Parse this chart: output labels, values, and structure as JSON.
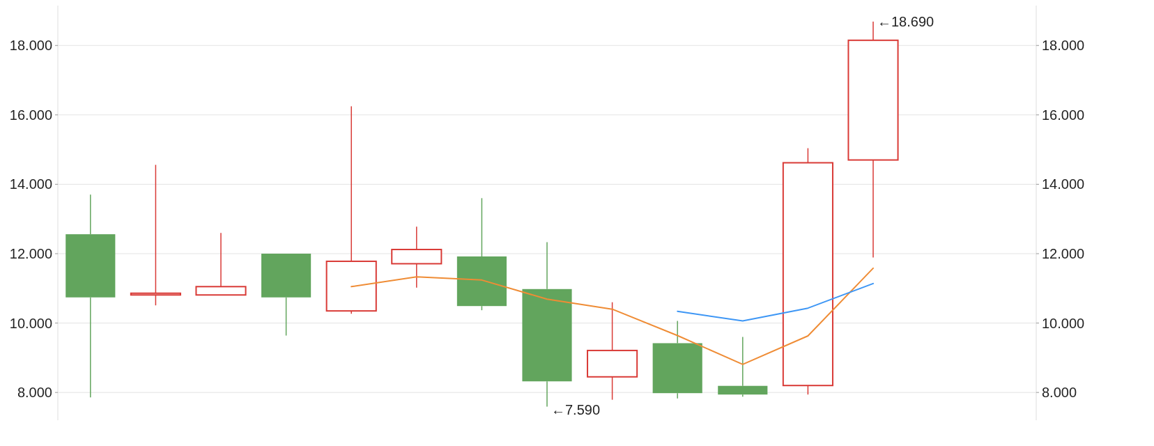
{
  "chart_data": {
    "type": "candlestick",
    "categories": [
      null,
      null,
      null,
      null,
      null,
      null,
      null,
      null,
      null,
      null,
      null,
      null,
      null,
      null,
      null
    ],
    "ohlc": [
      [
        12.56,
        13.7,
        7.86,
        10.74
      ],
      [
        10.81,
        14.56,
        10.51,
        10.86
      ],
      [
        10.81,
        12.6,
        10.81,
        11.05
      ],
      [
        12.0,
        12.0,
        9.64,
        10.74
      ],
      [
        10.35,
        16.25,
        10.27,
        11.78
      ],
      [
        11.71,
        12.78,
        11.02,
        12.12
      ],
      [
        11.92,
        13.6,
        10.37,
        10.49
      ],
      [
        10.98,
        12.33,
        7.59,
        8.32
      ],
      [
        8.45,
        10.6,
        7.79,
        9.21
      ],
      [
        9.42,
        10.06,
        7.83,
        7.98
      ],
      [
        8.19,
        9.6,
        7.88,
        7.94
      ],
      [
        8.2,
        15.04,
        7.94,
        14.62
      ],
      [
        14.7,
        18.69,
        11.89,
        18.15
      ],
      null,
      null
    ],
    "colors": [
      "#62a55d",
      "#d93a36",
      "#d93a36",
      "#62a55d",
      "#d93a36",
      "#d93a36",
      "#62a55d",
      "#62a55d",
      "#d93a36",
      "#62a55d",
      "#62a55d",
      "#d93a36",
      "#d93a36",
      null,
      null
    ],
    "series": [
      {
        "type": "line",
        "color": "#ef8c35",
        "values": [
          null,
          null,
          null,
          null,
          11.05,
          11.33,
          11.24,
          10.69,
          10.4,
          9.64,
          8.81,
          9.63,
          11.58,
          null,
          null
        ]
      },
      {
        "type": "line",
        "color": "#3d96f5",
        "values": [
          null,
          null,
          null,
          null,
          null,
          null,
          null,
          null,
          null,
          10.34,
          10.06,
          10.43,
          11.14,
          null,
          null
        ]
      }
    ],
    "ylim": [
      7.2,
      19.15
    ],
    "yticks": [
      {
        "value": 8,
        "label": "8.000"
      },
      {
        "value": 10,
        "label": "10.000"
      },
      {
        "value": 12,
        "label": "12.000"
      },
      {
        "value": 14,
        "label": "14.000"
      },
      {
        "value": 16,
        "label": "16.000"
      },
      {
        "value": 18,
        "label": "18.000"
      }
    ],
    "y2lim": [
      7.2,
      19.15
    ],
    "y2ticks": [
      {
        "value": 8,
        "label": "8.000"
      },
      {
        "value": 10,
        "label": "10.000"
      },
      {
        "value": 12,
        "label": "12.000"
      },
      {
        "value": 14,
        "label": "14.000"
      },
      {
        "value": 16,
        "label": "16.000"
      },
      {
        "value": 18,
        "label": "18.000"
      }
    ],
    "grid": "y",
    "annotations": [
      "←18.690",
      "←7.590"
    ]
  }
}
